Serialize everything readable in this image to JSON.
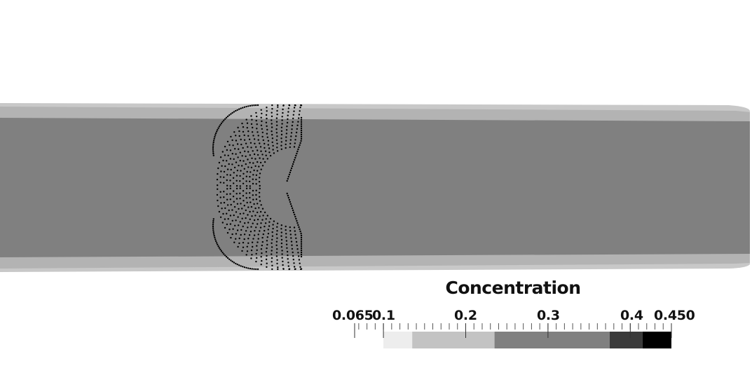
{
  "legend": {
    "title": "Concentration",
    "range": [
      0.065,
      0.45
    ],
    "tick_labels": [
      {
        "text": "0.065",
        "value": 0.065
      },
      {
        "text": "0.1",
        "value": 0.1
      },
      {
        "text": "0.2",
        "value": 0.2
      },
      {
        "text": "0.3",
        "value": 0.3
      },
      {
        "text": "0.4",
        "value": 0.4
      },
      {
        "text": "0.450",
        "value": 0.45
      }
    ],
    "bands": [
      {
        "from": 0.065,
        "to": 0.1,
        "color": "#ffffff"
      },
      {
        "from": 0.1,
        "to": 0.135,
        "color": "#ededed"
      },
      {
        "from": 0.135,
        "to": 0.235,
        "color": "#c3c3c3"
      },
      {
        "from": 0.235,
        "to": 0.375,
        "color": "#808080"
      },
      {
        "from": 0.375,
        "to": 0.415,
        "color": "#3a3a3a"
      },
      {
        "from": 0.415,
        "to": 0.45,
        "color": "#000000"
      }
    ]
  },
  "colors": {
    "background": "#ffffff",
    "channel_outer": "#c8c8c8",
    "channel_mid": "#b3b3b3",
    "channel_core": "#808080",
    "particles": "#000000"
  }
}
